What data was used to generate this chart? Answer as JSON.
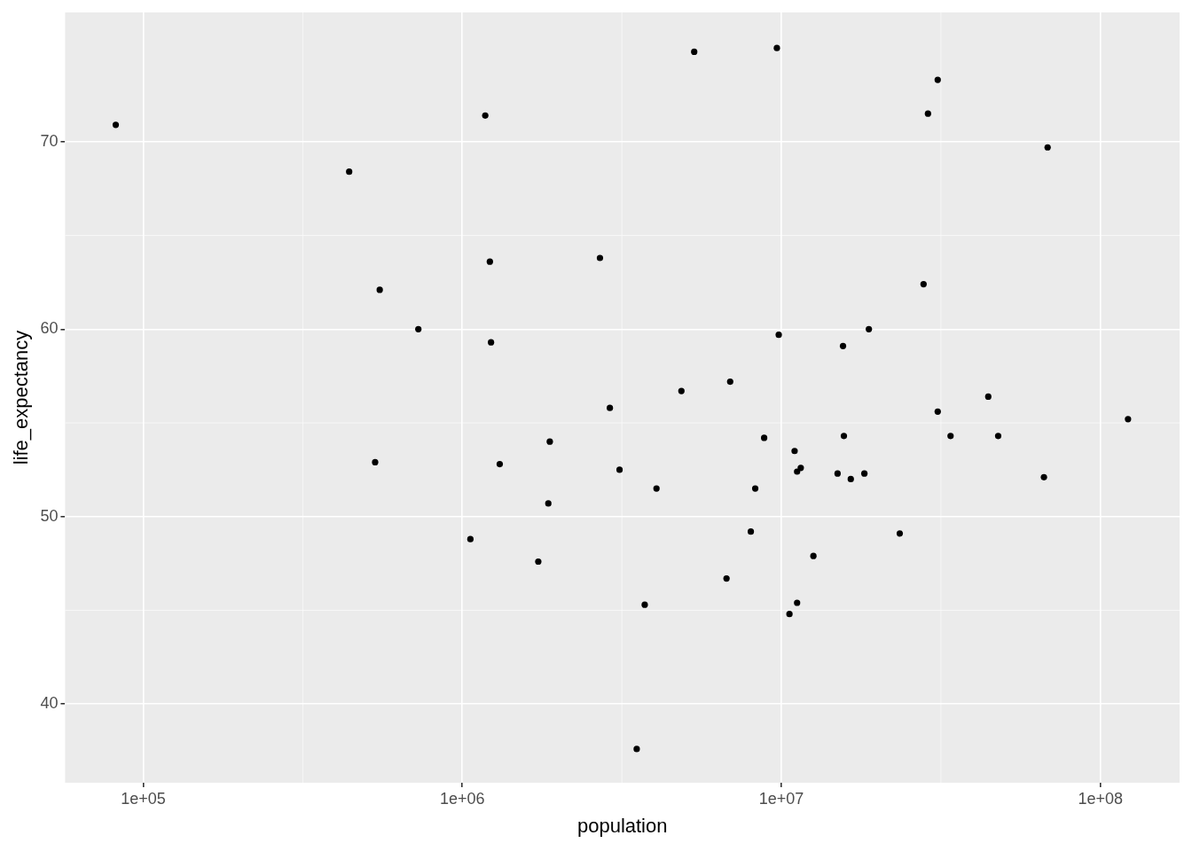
{
  "chart_data": {
    "type": "scatter",
    "xlabel": "population",
    "ylabel": "life_expectancy",
    "log": "x",
    "grid": true,
    "legend": false,
    "marker": "circle",
    "xlim": [
      56900,
      177000000
    ],
    "ylim": [
      35.8,
      76.9
    ],
    "xticks": [
      {
        "value": 100000,
        "label": "1e+05"
      },
      {
        "value": 1000000,
        "label": "1e+06"
      },
      {
        "value": 10000000,
        "label": "1e+07"
      },
      {
        "value": 100000000,
        "label": "1e+08"
      }
    ],
    "yticks": [
      40,
      50,
      60,
      70
    ],
    "series": [
      {
        "color": "#000000",
        "x": [
          82000,
          442000,
          551000,
          728000,
          533000,
          1180000,
          1220000,
          1230000,
          1310000,
          1060000,
          1730000,
          1860000,
          1880000,
          2700000,
          2900000,
          3110000,
          3730000,
          3520000,
          4060000,
          4860000,
          5330000,
          6730000,
          6910000,
          8020000,
          8280000,
          8830000,
          9680000,
          9810000,
          10600000,
          11000000,
          11200000,
          11200000,
          11500000,
          12600000,
          15000000,
          15600000,
          15700000,
          16500000,
          18200000,
          18800000,
          23500000,
          27900000,
          28800000,
          30900000,
          30900000,
          33900000,
          44500000,
          47800000,
          66500000,
          68300000,
          122000000
        ],
        "values": [
          70.9,
          68.4,
          62.1,
          60.0,
          52.9,
          71.4,
          63.6,
          59.3,
          52.8,
          48.8,
          47.6,
          50.7,
          54.0,
          63.8,
          55.8,
          52.5,
          45.3,
          37.6,
          51.5,
          56.7,
          74.8,
          46.7,
          57.2,
          49.2,
          51.5,
          54.2,
          75.0,
          59.7,
          44.8,
          53.5,
          45.4,
          52.4,
          52.6,
          47.9,
          52.3,
          59.1,
          54.3,
          52.0,
          52.3,
          60.0,
          49.1,
          62.4,
          71.5,
          73.3,
          55.6,
          54.3,
          56.4,
          54.3,
          52.1,
          69.7,
          55.2
        ]
      }
    ]
  }
}
